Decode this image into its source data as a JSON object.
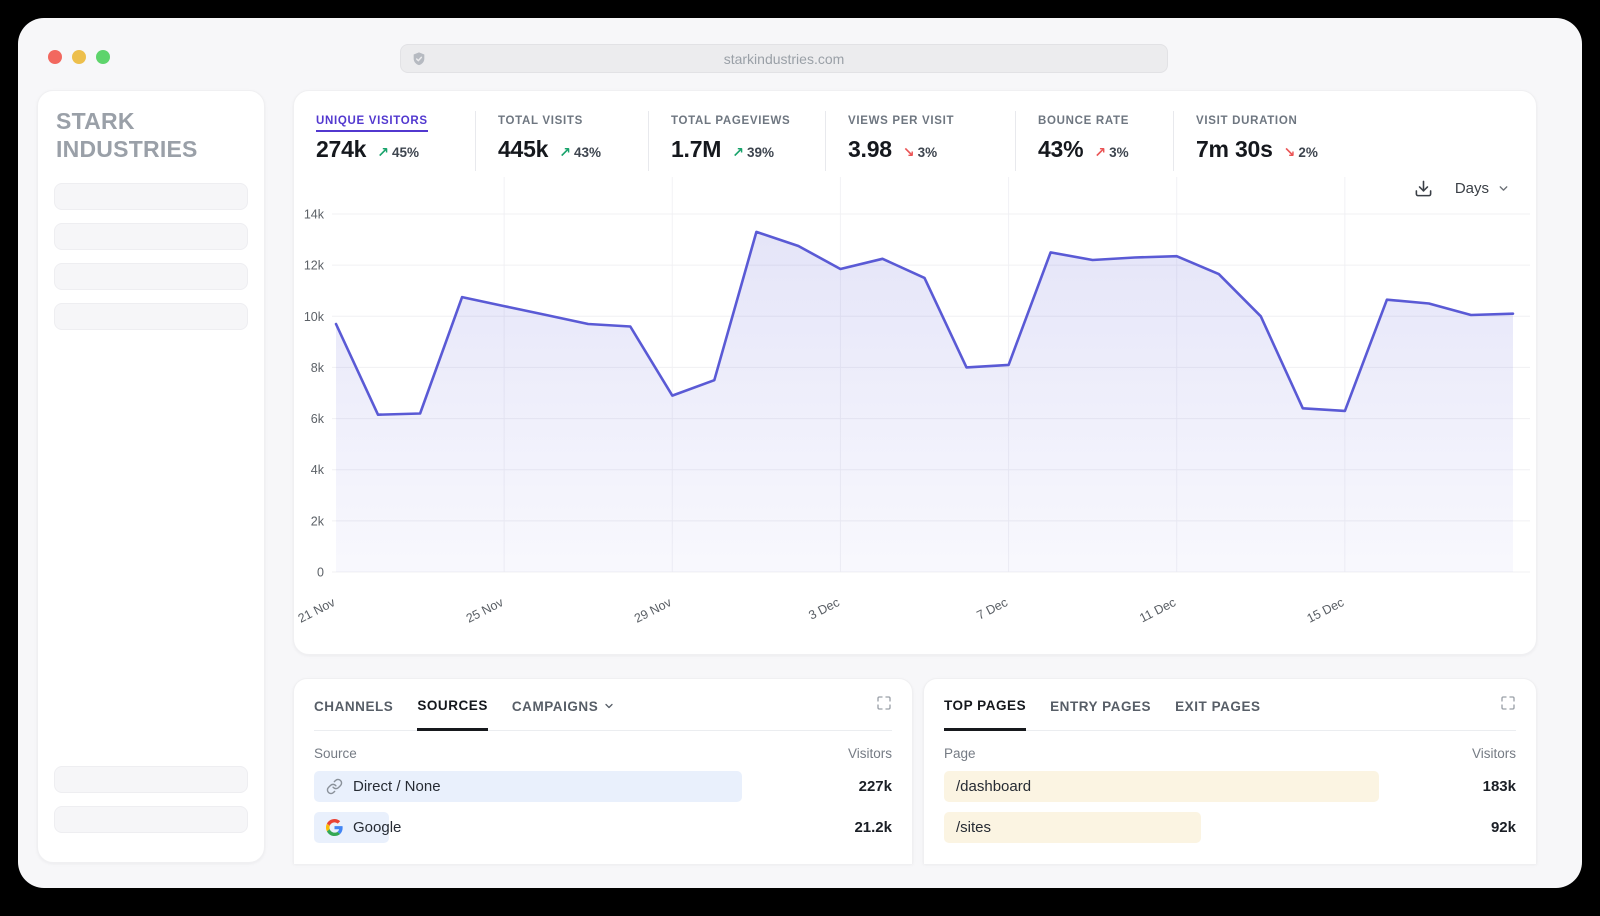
{
  "browser": {
    "url": "starkindustries.com"
  },
  "sidebar": {
    "brand": "STARK INDUSTRIES",
    "nav_placeholders": 4,
    "footer_placeholders": 2
  },
  "stats": [
    {
      "label": "UNIQUE VISITORS",
      "value": "274k",
      "delta": "45%",
      "direction": "up",
      "sentiment": "good",
      "active": true
    },
    {
      "label": "TOTAL VISITS",
      "value": "445k",
      "delta": "43%",
      "direction": "up",
      "sentiment": "good",
      "active": false
    },
    {
      "label": "TOTAL PAGEVIEWS",
      "value": "1.7M",
      "delta": "39%",
      "direction": "up",
      "sentiment": "good",
      "active": false
    },
    {
      "label": "VIEWS PER VISIT",
      "value": "3.98",
      "delta": "3%",
      "direction": "down",
      "sentiment": "bad",
      "active": false
    },
    {
      "label": "BOUNCE RATE",
      "value": "43%",
      "delta": "3%",
      "direction": "up",
      "sentiment": "bad",
      "active": false
    },
    {
      "label": "VISIT DURATION",
      "value": "7m 30s",
      "delta": "2%",
      "direction": "down",
      "sentiment": "bad",
      "active": false
    }
  ],
  "toolbar": {
    "interval_label": "Days",
    "download_icon": "download-icon",
    "chevron_icon": "chevron-down-icon"
  },
  "chart_data": {
    "type": "area",
    "title": "Unique visitors by day",
    "x": [
      "21 Nov",
      "22 Nov",
      "23 Nov",
      "24 Nov",
      "25 Nov",
      "26 Nov",
      "27 Nov",
      "28 Nov",
      "29 Nov",
      "30 Nov",
      "1 Dec",
      "2 Dec",
      "3 Dec",
      "4 Dec",
      "5 Dec",
      "6 Dec",
      "7 Dec",
      "8 Dec",
      "9 Dec",
      "10 Dec",
      "11 Dec",
      "12 Dec",
      "13 Dec",
      "14 Dec",
      "15 Dec",
      "16 Dec",
      "17 Dec",
      "18 Dec",
      "19 Dec"
    ],
    "values": [
      9700,
      6150,
      6200,
      10750,
      10400,
      10050,
      9700,
      9600,
      6900,
      7500,
      13300,
      12750,
      11850,
      12250,
      11500,
      8000,
      8100,
      12500,
      12200,
      12300,
      12350,
      11650,
      10000,
      6400,
      6300,
      10650,
      10500,
      10050,
      10100
    ],
    "tick_labels": [
      "21 Nov",
      "25 Nov",
      "29 Nov",
      "3 Dec",
      "7 Dec",
      "11 Dec",
      "15 Dec"
    ],
    "tick_every": 4,
    "ylim": [
      0,
      14000
    ],
    "ytick_step": 2000,
    "ytick_format": "k",
    "grid": true,
    "legend": "none"
  },
  "sources_panel": {
    "tabs": [
      {
        "label": "CHANNELS",
        "active": false,
        "has_chevron": false
      },
      {
        "label": "SOURCES",
        "active": true,
        "has_chevron": false
      },
      {
        "label": "CAMPAIGNS",
        "active": false,
        "has_chevron": true
      }
    ],
    "columns": [
      "Source",
      "Visitors"
    ],
    "rows": [
      {
        "icon": "link-icon",
        "label": "Direct / None",
        "value": "227k",
        "bar_pct": 74
      },
      {
        "icon": "google-icon",
        "label": "Google",
        "value": "21.2k",
        "bar_pct": 13
      }
    ]
  },
  "pages_panel": {
    "tabs": [
      {
        "label": "TOP PAGES",
        "active": true,
        "has_chevron": false
      },
      {
        "label": "ENTRY PAGES",
        "active": false,
        "has_chevron": false
      },
      {
        "label": "EXIT PAGES",
        "active": false,
        "has_chevron": false
      }
    ],
    "columns": [
      "Page",
      "Visitors"
    ],
    "rows": [
      {
        "icon": null,
        "label": "/dashboard",
        "value": "183k",
        "bar_pct": 76
      },
      {
        "icon": null,
        "label": "/sites",
        "value": "92k",
        "bar_pct": 45
      }
    ]
  },
  "colors": {
    "accent": "#5238cf",
    "line": "#5a5ad5",
    "good": "#18a36b",
    "bad": "#ea5455",
    "source_bar": "#e9f0fc",
    "page_bar": "#fbf4e2"
  }
}
